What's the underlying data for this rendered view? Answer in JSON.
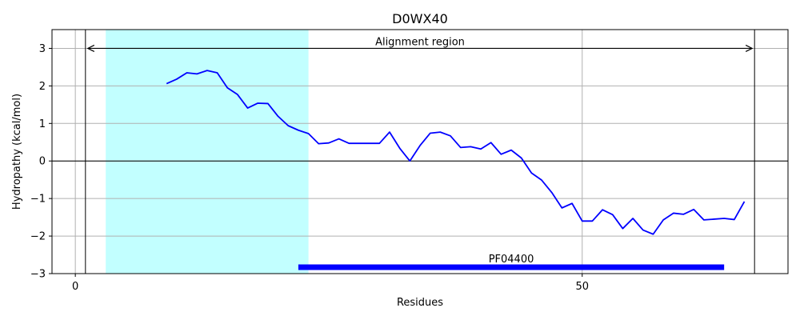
{
  "chart_data": {
    "type": "line",
    "title": "D0WX40",
    "xlabel": "Residues",
    "ylabel": "Hydropathy (kcal/mol)",
    "xlim": [
      -2.3,
      70.3
    ],
    "ylim": [
      -3,
      3.5
    ],
    "xticks": [
      0,
      50
    ],
    "yticks": [
      -3,
      -2,
      -1,
      0,
      1,
      2,
      3
    ],
    "ytick_labels": [
      "−3",
      "−2",
      "−1",
      "0",
      "1",
      "2",
      "3"
    ],
    "grid": true,
    "colors": {
      "line": "#0000ff",
      "highlight": "#c2ffff",
      "domain_bar": "#0000ff",
      "grid": "#b0b0b0"
    },
    "highlight_region": {
      "x_start": 3,
      "x_end": 23
    },
    "alignment_region": {
      "label": "Alignment region",
      "x_start": 1,
      "x_end": 67,
      "y": 3
    },
    "domain": {
      "label": "PF04400",
      "x_start": 22,
      "x_end": 64,
      "y": -2.83
    },
    "series": [
      {
        "x": [
          9,
          10,
          11,
          12,
          13,
          14,
          15,
          16,
          17,
          18,
          19,
          20,
          21,
          22,
          23,
          24,
          25,
          26,
          27,
          28,
          29,
          30,
          31,
          32,
          33,
          34,
          35,
          36,
          37,
          38,
          39,
          40,
          41,
          42,
          43,
          44,
          45,
          46,
          47,
          48,
          49,
          50,
          51,
          52,
          53,
          54,
          55,
          56,
          57,
          58,
          59,
          60,
          61,
          62,
          63,
          64,
          65,
          66
        ],
        "y": [
          2.06,
          2.18,
          2.35,
          2.32,
          2.41,
          2.35,
          1.95,
          1.77,
          1.41,
          1.54,
          1.53,
          1.19,
          0.94,
          0.82,
          0.73,
          0.46,
          0.48,
          0.59,
          0.47,
          0.47,
          0.47,
          0.47,
          0.77,
          0.34,
          0.0,
          0.41,
          0.74,
          0.77,
          0.67,
          0.36,
          0.38,
          0.32,
          0.49,
          0.18,
          0.29,
          0.08,
          -0.32,
          -0.51,
          -0.84,
          -1.25,
          -1.13,
          -1.6,
          -1.6,
          -1.3,
          -1.43,
          -1.8,
          -1.53,
          -1.84,
          -1.95,
          -1.57,
          -1.39,
          -1.42,
          -1.29,
          -1.57,
          -1.55,
          -1.53,
          -1.56,
          -1.08
        ]
      }
    ]
  }
}
